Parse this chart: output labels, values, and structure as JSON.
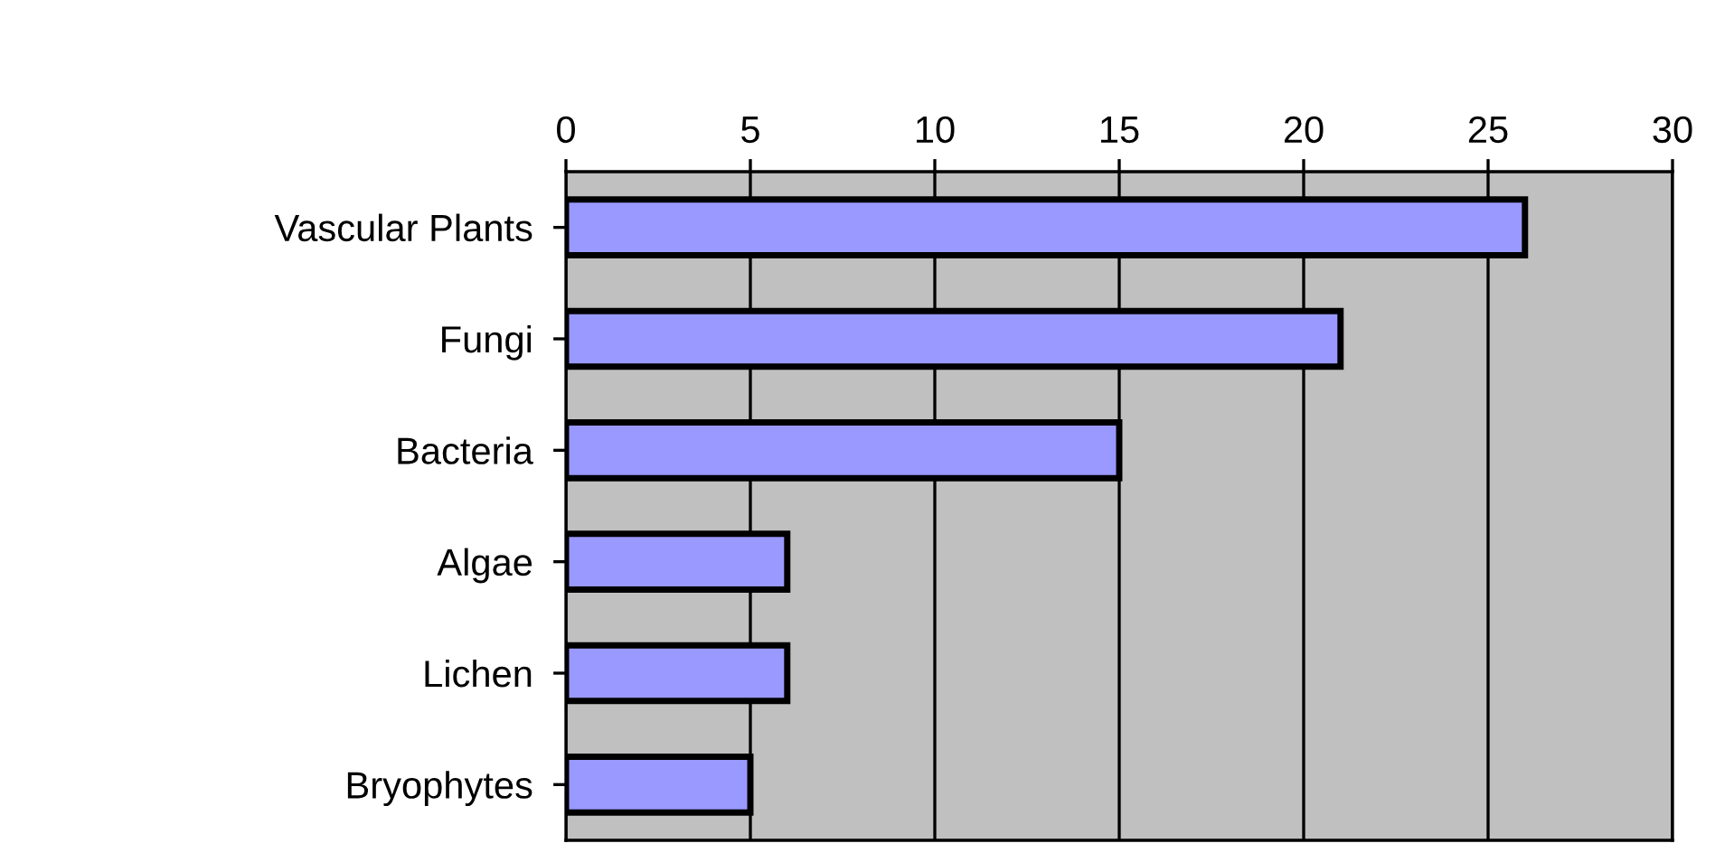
{
  "chart_data": {
    "type": "bar",
    "orientation": "horizontal",
    "categories": [
      "Vascular Plants",
      "Fungi",
      "Bacteria",
      "Algae",
      "Lichen",
      "Bryophytes"
    ],
    "values": [
      26,
      21,
      15,
      6,
      6,
      5
    ],
    "color": "#9999ff",
    "xlim": [
      0,
      30
    ],
    "xticks": [
      0,
      5,
      10,
      15,
      20,
      25,
      30
    ],
    "grid": "x"
  }
}
